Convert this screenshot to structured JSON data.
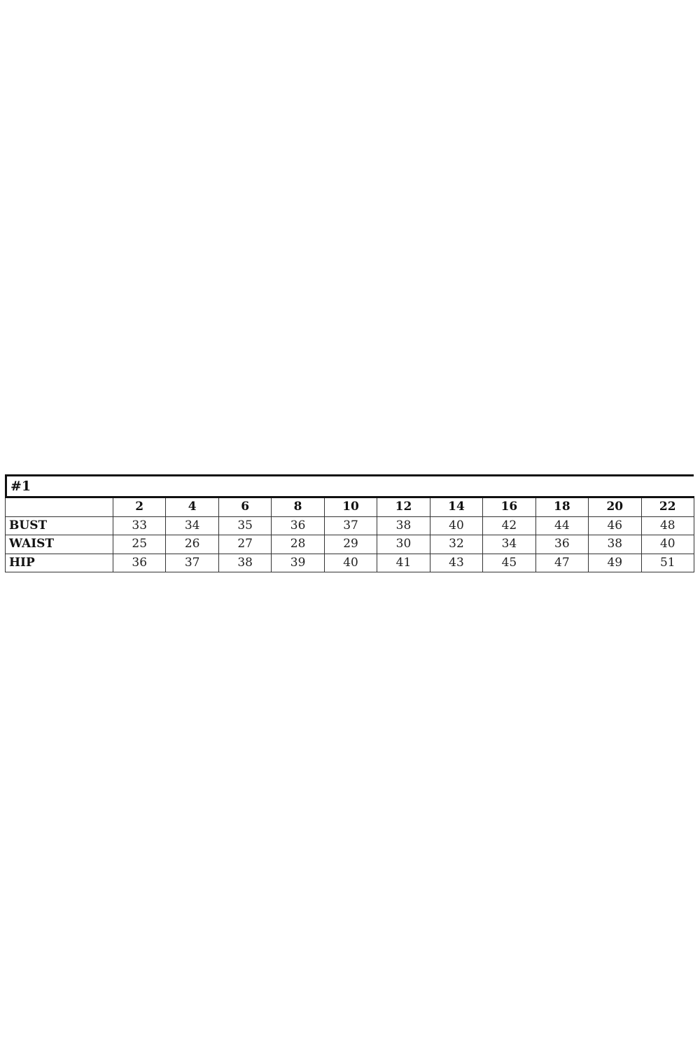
{
  "title": "#1",
  "table": {
    "header": [
      "",
      "2",
      "4",
      "6",
      "8",
      "10",
      "12",
      "14",
      "16",
      "18",
      "20",
      "22"
    ],
    "rows": [
      {
        "label": "BUST",
        "values": [
          "33",
          "34",
          "35",
          "36",
          "37",
          "38",
          "40",
          "42",
          "44",
          "46",
          "48"
        ]
      },
      {
        "label": "WAIST",
        "values": [
          "25",
          "26",
          "27",
          "28",
          "29",
          "30",
          "32",
          "34",
          "36",
          "38",
          "40"
        ]
      },
      {
        "label": "HIP",
        "values": [
          "36",
          "37",
          "38",
          "39",
          "40",
          "41",
          "43",
          "45",
          "47",
          "49",
          "51"
        ]
      }
    ]
  }
}
